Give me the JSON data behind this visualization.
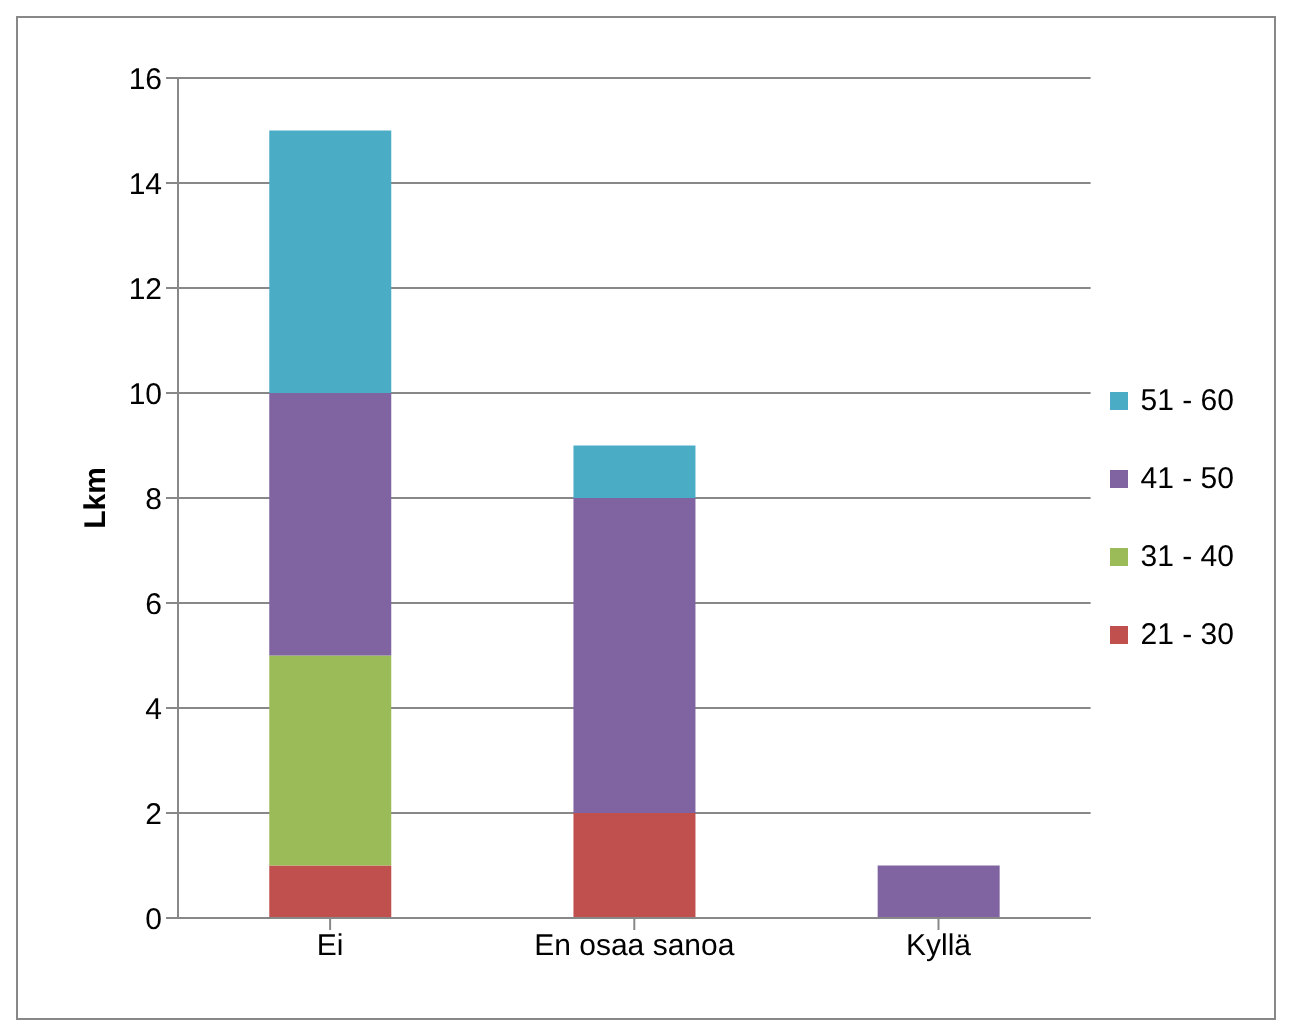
{
  "chart_data": {
    "type": "bar",
    "stacked": true,
    "ylabel": "Lkm",
    "categories": [
      "Ei",
      "En osaa sanoa",
      "Kyllä"
    ],
    "series": [
      {
        "name": "21 - 30",
        "color": "#c0504d",
        "values": [
          1,
          2,
          0
        ]
      },
      {
        "name": "31 - 40",
        "color": "#9bbb59",
        "values": [
          4,
          0,
          0
        ]
      },
      {
        "name": "41 - 50",
        "color": "#8064a2",
        "values": [
          5,
          6,
          1
        ]
      },
      {
        "name": "51 - 60",
        "color": "#4bacc6",
        "values": [
          5,
          1,
          0
        ]
      }
    ],
    "ylim": [
      0,
      16
    ],
    "yticks": [
      0,
      2,
      4,
      6,
      8,
      10,
      12,
      14,
      16
    ],
    "grid": "y",
    "legend": "right"
  }
}
